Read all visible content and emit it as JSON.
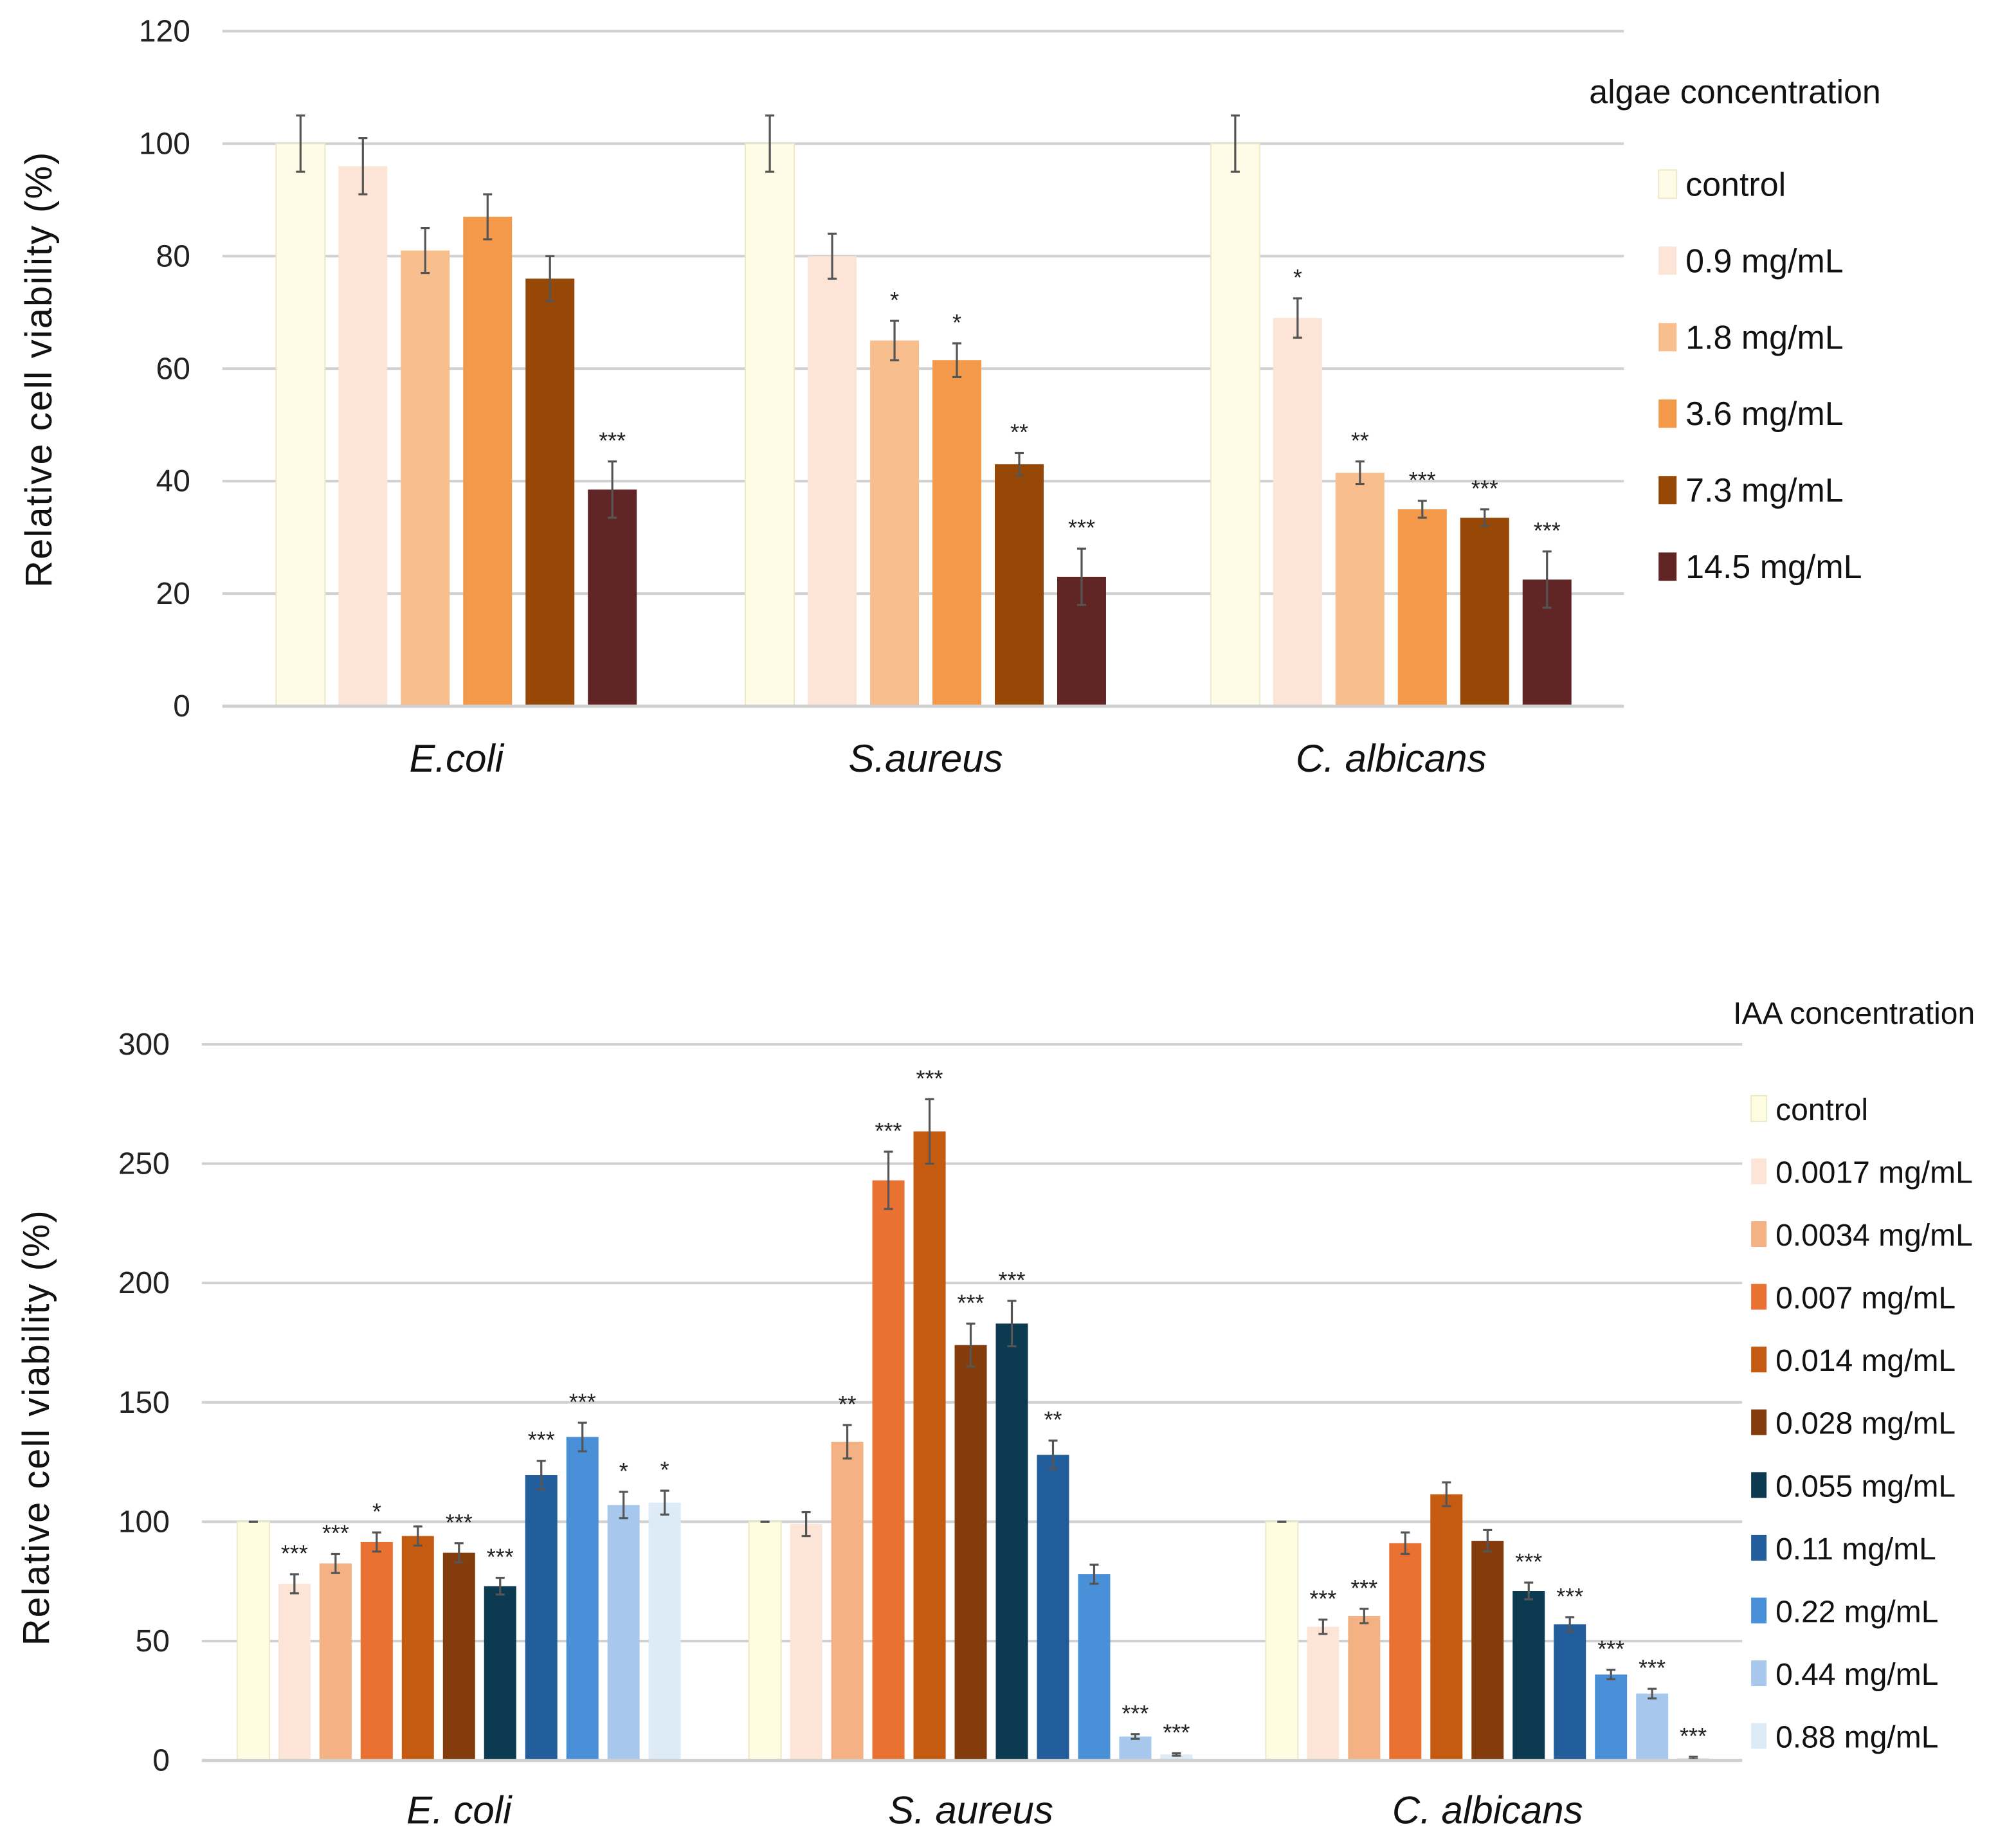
{
  "chart_data": [
    {
      "type": "bar",
      "ylabel": "Relative cell viability (%)",
      "ylim": [
        0,
        120
      ],
      "yticks": [
        0,
        20,
        40,
        60,
        80,
        100,
        120
      ],
      "grid": true,
      "legend_title": "algae concentration",
      "legend_position": "right",
      "categories": [
        "E.coli",
        "S.aureus",
        "C. albicans"
      ],
      "series": [
        {
          "name": "control",
          "color": "#FEFCE6",
          "values": [
            100,
            100,
            100
          ],
          "errors": [
            5,
            5,
            5
          ],
          "significance": [
            "",
            "",
            ""
          ]
        },
        {
          "name": "0.9 mg/mL",
          "color": "#FCE4D6",
          "values": [
            96,
            80,
            69
          ],
          "errors": [
            5,
            4,
            3.5
          ],
          "significance": [
            "",
            "",
            "*"
          ]
        },
        {
          "name": "1.8 mg/mL",
          "color": "#F8BE8E",
          "values": [
            81,
            65,
            41.5
          ],
          "errors": [
            4,
            3.5,
            2
          ],
          "significance": [
            "",
            "*",
            "**"
          ]
        },
        {
          "name": "3.6 mg/mL",
          "color": "#F4994A",
          "values": [
            87,
            61.5,
            35
          ],
          "errors": [
            4,
            3,
            1.5
          ],
          "significance": [
            "",
            "*",
            "***"
          ]
        },
        {
          "name": "7.3 mg/mL",
          "color": "#974706",
          "values": [
            76,
            43,
            33.5
          ],
          "errors": [
            4,
            2,
            1.5
          ],
          "significance": [
            "",
            "**",
            "***"
          ]
        },
        {
          "name": "14.5 mg/mL",
          "color": "#622526",
          "values": [
            38.5,
            23,
            22.5
          ],
          "errors": [
            5,
            5,
            5
          ],
          "significance": [
            "***",
            "***",
            "***"
          ]
        }
      ]
    },
    {
      "type": "bar",
      "ylabel": "Relative cell viability (%)",
      "ylim": [
        0,
        300
      ],
      "yticks": [
        0,
        50,
        100,
        150,
        200,
        250,
        300
      ],
      "grid": true,
      "legend_title": "IAA concentration",
      "legend_position": "right",
      "categories": [
        "E. coli",
        "S. aureus",
        "C. albicans"
      ],
      "series": [
        {
          "name": "control",
          "color": "#FEFDE2",
          "values": [
            100,
            100,
            100
          ],
          "errors": [
            0,
            0,
            0
          ],
          "significance": [
            "",
            "",
            ""
          ]
        },
        {
          "name": "0.0017 mg/mL",
          "color": "#FCE4D6",
          "values": [
            74,
            99,
            56
          ],
          "errors": [
            4,
            5,
            3
          ],
          "significance": [
            "***",
            "",
            "***"
          ]
        },
        {
          "name": "0.0034 mg/mL",
          "color": "#F4B183",
          "values": [
            82.5,
            133.5,
            60.5
          ],
          "errors": [
            4,
            7,
            3
          ],
          "significance": [
            "***",
            "**",
            "***"
          ]
        },
        {
          "name": "0.007 mg/mL",
          "color": "#E97132",
          "values": [
            91.5,
            243,
            91
          ],
          "errors": [
            4,
            12,
            4.5
          ],
          "significance": [
            "*",
            "***",
            ""
          ]
        },
        {
          "name": "0.014 mg/mL",
          "color": "#C55A11",
          "values": [
            94,
            263.5,
            111.5
          ],
          "errors": [
            4,
            13.5,
            5
          ],
          "significance": [
            "",
            "***",
            ""
          ]
        },
        {
          "name": "0.028 mg/mL",
          "color": "#843C0C",
          "values": [
            87,
            174,
            92
          ],
          "errors": [
            4,
            9,
            4.5
          ],
          "significance": [
            "***",
            "***",
            ""
          ]
        },
        {
          "name": "0.055 mg/mL",
          "color": "#0C3A50",
          "values": [
            73,
            183,
            71
          ],
          "errors": [
            3.5,
            9.5,
            3.5
          ],
          "significance": [
            "***",
            "***",
            "***"
          ]
        },
        {
          "name": "0.11 mg/mL",
          "color": "#225E9B",
          "values": [
            119.5,
            128,
            57
          ],
          "errors": [
            6,
            6,
            3
          ],
          "significance": [
            "***",
            "**",
            "***"
          ]
        },
        {
          "name": "0.22 mg/mL",
          "color": "#4A90D9",
          "values": [
            135.5,
            78,
            36
          ],
          "errors": [
            6,
            4,
            2
          ],
          "significance": [
            "***",
            "",
            "***"
          ]
        },
        {
          "name": "0.44 mg/mL",
          "color": "#A7C8EC",
          "values": [
            107,
            10,
            28
          ],
          "errors": [
            5.5,
            1,
            2
          ],
          "significance": [
            "*",
            "***",
            "***"
          ]
        },
        {
          "name": "0.88 mg/mL",
          "color": "#DDEBF7",
          "values": [
            108,
            2.5,
            1
          ],
          "errors": [
            5,
            0.5,
            0.5
          ],
          "significance": [
            "*",
            "***",
            "***"
          ]
        }
      ]
    }
  ]
}
